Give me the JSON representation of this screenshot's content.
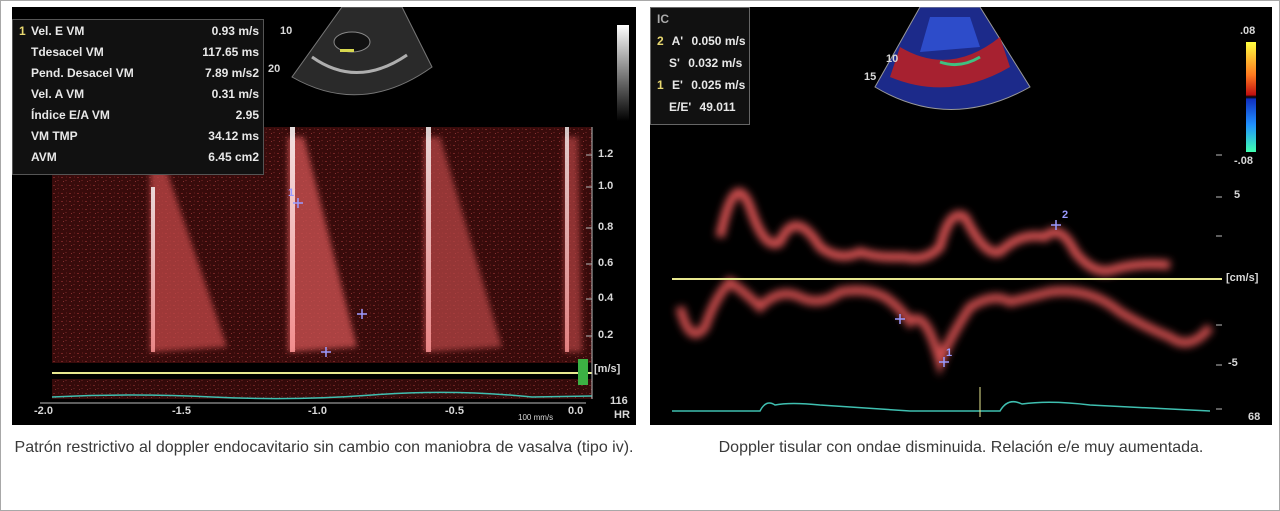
{
  "left_panel": {
    "measurements": [
      {
        "idx": "1",
        "label": "Vel. E VM",
        "value": "0.93 m/s"
      },
      {
        "idx": "",
        "label": "Tdesacel VM",
        "value": "117.65 ms"
      },
      {
        "idx": "",
        "label": "Pend. Desacel VM",
        "value": "7.89 m/s2"
      },
      {
        "idx": "",
        "label": "Vel. A VM",
        "value": "0.31 m/s"
      },
      {
        "idx": "",
        "label": "Índice E/A VM",
        "value": "2.95"
      },
      {
        "idx": "",
        "label": "VM TMP",
        "value": "34.12 ms"
      },
      {
        "idx": "",
        "label": "AVM",
        "value": "6.45 cm2"
      }
    ],
    "y_ticks": [
      "1.2",
      "1.0",
      "0.8",
      "0.6",
      "0.4",
      "0.2"
    ],
    "y_unit": "[m/s]",
    "x_ticks": [
      "-2.0",
      "-1.5",
      "-1.0",
      "-0.5",
      "0.0"
    ],
    "sweep": "100 mm/s",
    "hr_value": "116",
    "hr_label": "HR",
    "depth_marks": [
      "10",
      "20"
    ],
    "markers": [
      "1",
      "+",
      "+"
    ]
  },
  "right_panel": {
    "measurements": [
      {
        "idx": "2",
        "label": "A'",
        "value": "0.050 m/s"
      },
      {
        "idx": "",
        "label": "S'",
        "value": "0.032 m/s"
      },
      {
        "idx": "1",
        "label": "E'",
        "value": "0.025 m/s"
      },
      {
        "idx": "",
        "label": "E/E'",
        "value": "49.011"
      }
    ],
    "header_icon": "IC",
    "scale_top": ".08",
    "scale_bottom": "-.08",
    "y_ticks": [
      "5",
      "-5"
    ],
    "y_unit": "[cm/s]",
    "hr_value": "68",
    "depth_marks": [
      "10",
      "15"
    ],
    "markers": [
      "2",
      "+",
      "1"
    ]
  },
  "captions": {
    "left": "Patrón restrictivo al doppler endocavitario sin cambio con maniobra de vasalva (tipo iv).",
    "right": "Doppler tisular con ondae disminuida. Relación e/e muy aumentada."
  },
  "colors": {
    "doppler_red": "#e05a5a",
    "baseline": "#e8e890",
    "ecg": "#3fbfb0",
    "marker": "#9a9aff",
    "green_bar": "#3cb043"
  }
}
